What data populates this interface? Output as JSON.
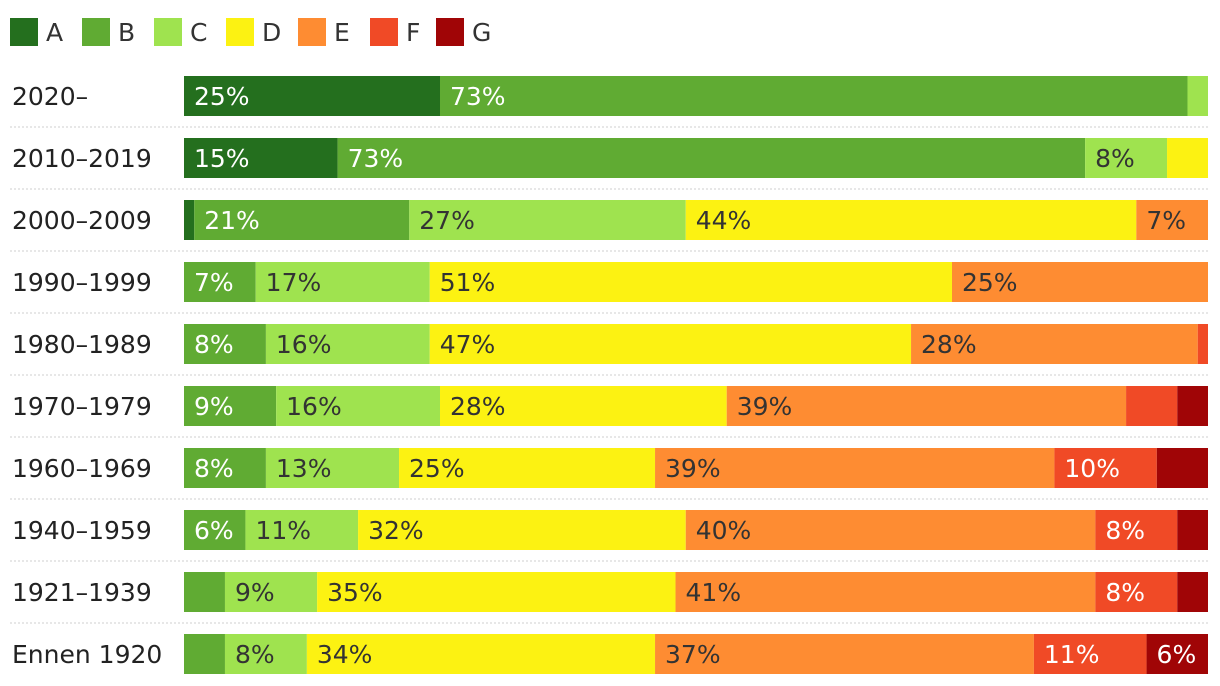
{
  "chart_data": {
    "type": "bar",
    "orientation": "horizontal",
    "stacked": true,
    "normalized": true,
    "title": "",
    "xlabel": "",
    "ylabel": "",
    "xlim": [
      0,
      100
    ],
    "grid": false,
    "legend_position": "top-left",
    "categories": [
      "2020–",
      "2010–2019",
      "2000–2009",
      "1990–1999",
      "1980–1989",
      "1970–1979",
      "1960–1969",
      "1940–1959",
      "1921–1939",
      "Ennen 1920"
    ],
    "series": [
      {
        "name": "A",
        "color": "#246f1e",
        "values": [
          25,
          15,
          1,
          0,
          0,
          0,
          0,
          0,
          0,
          0
        ]
      },
      {
        "name": "B",
        "color": "#60ab33",
        "values": [
          73,
          73,
          21,
          7,
          8,
          9,
          8,
          6,
          4,
          4
        ]
      },
      {
        "name": "C",
        "color": "#9fe34f",
        "values": [
          2,
          8,
          27,
          17,
          16,
          16,
          13,
          11,
          9,
          8
        ]
      },
      {
        "name": "D",
        "color": "#fcf212",
        "values": [
          0,
          4,
          44,
          51,
          47,
          28,
          25,
          32,
          35,
          34
        ]
      },
      {
        "name": "E",
        "color": "#fe8c32",
        "values": [
          0,
          0,
          7,
          25,
          28,
          39,
          39,
          40,
          41,
          37
        ]
      },
      {
        "name": "F",
        "color": "#f04a26",
        "values": [
          0,
          0,
          0,
          0,
          1,
          5,
          10,
          8,
          8,
          11
        ]
      },
      {
        "name": "G",
        "color": "#a00506",
        "values": [
          0,
          0,
          0,
          0,
          0,
          3,
          5,
          3,
          3,
          6
        ]
      }
    ],
    "data_labels": [
      [
        "25%",
        "73%",
        "",
        "",
        "",
        "",
        ""
      ],
      [
        "15%",
        "73%",
        "8%",
        "",
        "",
        "",
        ""
      ],
      [
        "",
        "21%",
        "27%",
        "44%",
        "7%",
        "",
        ""
      ],
      [
        "",
        "7%",
        "17%",
        "51%",
        "25%",
        "",
        ""
      ],
      [
        "",
        "8%",
        "16%",
        "47%",
        "28%",
        "",
        ""
      ],
      [
        "",
        "9%",
        "16%",
        "28%",
        "39%",
        "",
        ""
      ],
      [
        "",
        "8%",
        "13%",
        "25%",
        "39%",
        "10%",
        ""
      ],
      [
        "",
        "6%",
        "11%",
        "32%",
        "40%",
        "8%",
        ""
      ],
      [
        "",
        "",
        "9%",
        "35%",
        "41%",
        "8%",
        ""
      ],
      [
        "",
        "",
        "8%",
        "34%",
        "37%",
        "11%",
        "6%"
      ]
    ],
    "label_text_colors": {
      "light": "#ffffff",
      "dark": "#333333"
    }
  }
}
